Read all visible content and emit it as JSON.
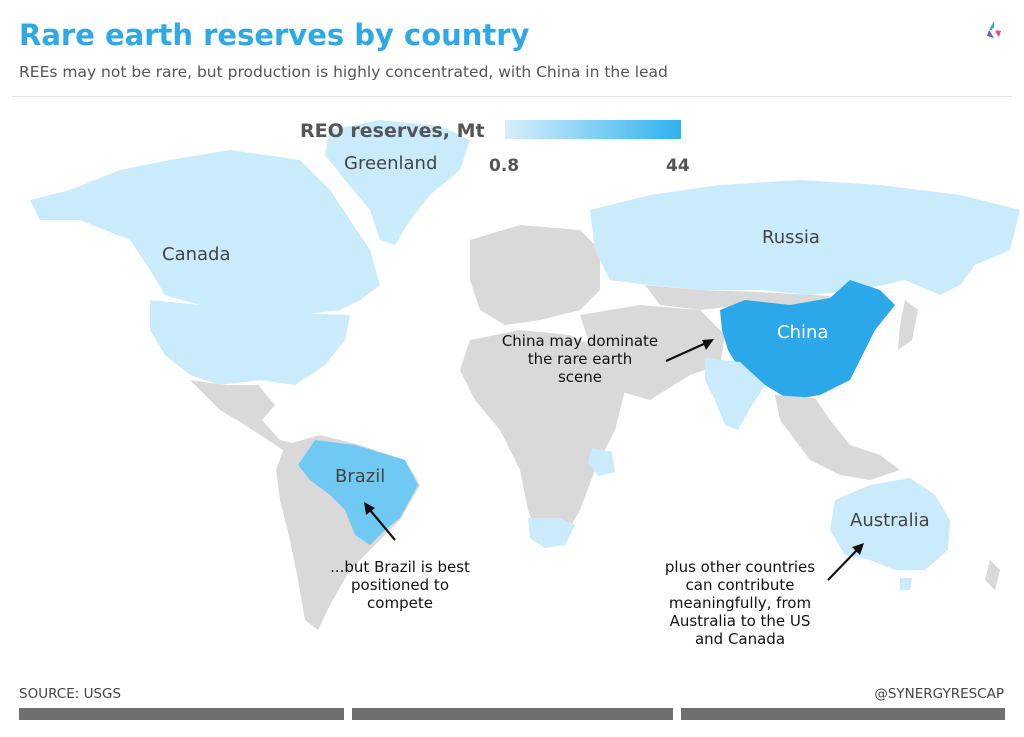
{
  "header": {
    "title": "Rare earth reserves by country",
    "subtitle": "REEs may not be rare, but production is highly concentrated, with China in the lead"
  },
  "legend": {
    "title": "REO reserves, Mt",
    "min_label": "0.8",
    "max_label": "44",
    "min_color": "#d6effc",
    "max_color": "#2fb0ee"
  },
  "countries": [
    {
      "name": "Greenland",
      "shade": "light"
    },
    {
      "name": "Canada",
      "shade": "light"
    },
    {
      "name": "Russia",
      "shade": "light"
    },
    {
      "name": "China",
      "shade": "max"
    },
    {
      "name": "Brazil",
      "shade": "medium"
    },
    {
      "name": "Australia",
      "shade": "light"
    }
  ],
  "annotations": [
    {
      "text": "China may dominate\nthe rare earth\nscene"
    },
    {
      "text": "...but Brazil is best\npositioned to\ncompete"
    },
    {
      "text": "plus other countries\ncan contribute\nmeaningfully, from\nAustralia to the US\nand Canada"
    }
  ],
  "footer": {
    "source": "SOURCE: USGS",
    "handle": "@SYNERGYRESCAP"
  },
  "colors": {
    "title": "#2fa9e6",
    "land_no_data": "#d9d9d9",
    "land_light": "#c9ebfb",
    "land_medium": "#70c9f2",
    "land_max": "#2aa8ea"
  },
  "icons": {
    "logo": "synergy-logo-icon"
  }
}
